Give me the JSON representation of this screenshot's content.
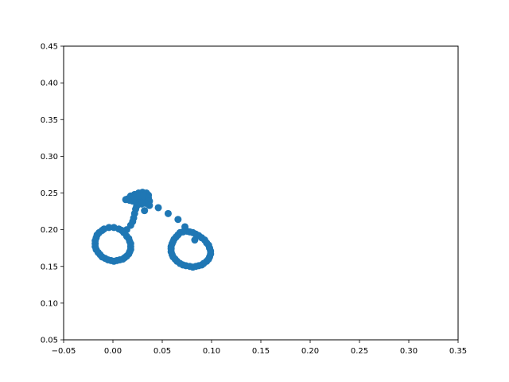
{
  "chart_data": {
    "type": "scatter",
    "title": "",
    "xlabel": "",
    "ylabel": "",
    "xlim": [
      -0.05,
      0.35
    ],
    "ylim": [
      0.05,
      0.45
    ],
    "xticks": [
      "−0.05",
      "0.00",
      "0.05",
      "0.10",
      "0.15",
      "0.20",
      "0.25",
      "0.30",
      "0.35"
    ],
    "yticks": [
      "0.05",
      "0.10",
      "0.15",
      "0.20",
      "0.25",
      "0.30",
      "0.35",
      "0.40",
      "0.45"
    ],
    "grid": false,
    "color": "#1f77b4",
    "series": [
      {
        "points": [
          [
            0.015,
            0.242
          ],
          [
            0.018,
            0.246
          ],
          [
            0.022,
            0.248
          ],
          [
            0.026,
            0.25
          ],
          [
            0.03,
            0.251
          ],
          [
            0.034,
            0.25
          ],
          [
            0.036,
            0.247
          ],
          [
            0.035,
            0.244
          ],
          [
            0.032,
            0.242
          ],
          [
            0.028,
            0.24
          ],
          [
            0.024,
            0.239
          ],
          [
            0.02,
            0.239
          ],
          [
            0.017,
            0.24
          ],
          [
            0.013,
            0.241
          ],
          [
            0.022,
            0.244
          ],
          [
            0.027,
            0.246
          ],
          [
            0.031,
            0.246
          ],
          [
            0.036,
            0.243
          ],
          [
            0.037,
            0.239
          ],
          [
            0.033,
            0.236
          ],
          [
            0.029,
            0.235
          ],
          [
            0.024,
            0.232
          ],
          [
            0.023,
            0.228
          ],
          [
            0.022,
            0.222
          ],
          [
            0.021,
            0.216
          ],
          [
            0.02,
            0.211
          ],
          [
            0.018,
            0.206
          ],
          [
            0.014,
            0.2
          ],
          [
            0.032,
            0.226
          ],
          [
            0.037,
            0.233
          ],
          [
            0.046,
            0.23
          ],
          [
            0.056,
            0.222
          ],
          [
            0.066,
            0.214
          ],
          [
            0.073,
            0.204
          ],
          [
            0.083,
            0.186
          ],
          [
            0.011,
            0.196
          ],
          [
            0.006,
            0.201
          ],
          [
            0.001,
            0.203
          ],
          [
            -0.004,
            0.203
          ],
          [
            -0.009,
            0.201
          ],
          [
            -0.014,
            0.196
          ],
          [
            -0.017,
            0.189
          ],
          [
            -0.018,
            0.181
          ],
          [
            -0.017,
            0.173
          ],
          [
            -0.013,
            0.166
          ],
          [
            -0.008,
            0.161
          ],
          [
            -0.002,
            0.158
          ],
          [
            0.004,
            0.158
          ],
          [
            0.01,
            0.16
          ],
          [
            0.014,
            0.164
          ],
          [
            0.017,
            0.17
          ],
          [
            0.018,
            0.177
          ],
          [
            0.017,
            0.184
          ],
          [
            0.014,
            0.191
          ],
          [
            0.009,
            0.199
          ],
          [
            -0.011,
            0.199
          ],
          [
            -0.016,
            0.193
          ],
          [
            -0.018,
            0.185
          ],
          [
            -0.018,
            0.177
          ],
          [
            -0.015,
            0.169
          ],
          [
            -0.011,
            0.163
          ],
          [
            -0.005,
            0.159
          ],
          [
            0.001,
            0.157
          ],
          [
            0.007,
            0.159
          ],
          [
            0.012,
            0.162
          ],
          [
            0.016,
            0.167
          ],
          [
            0.018,
            0.173
          ],
          [
            0.018,
            0.181
          ],
          [
            0.016,
            0.188
          ],
          [
            0.068,
            0.196
          ],
          [
            0.075,
            0.198
          ],
          [
            0.081,
            0.196
          ],
          [
            0.087,
            0.192
          ],
          [
            0.093,
            0.186
          ],
          [
            0.097,
            0.179
          ],
          [
            0.099,
            0.171
          ],
          [
            0.098,
            0.163
          ],
          [
            0.095,
            0.157
          ],
          [
            0.09,
            0.152
          ],
          [
            0.084,
            0.15
          ],
          [
            0.078,
            0.15
          ],
          [
            0.071,
            0.152
          ],
          [
            0.065,
            0.157
          ],
          [
            0.061,
            0.163
          ],
          [
            0.059,
            0.17
          ],
          [
            0.059,
            0.177
          ],
          [
            0.061,
            0.184
          ],
          [
            0.064,
            0.19
          ],
          [
            0.071,
            0.197
          ],
          [
            0.078,
            0.197
          ],
          [
            0.084,
            0.194
          ],
          [
            0.09,
            0.189
          ],
          [
            0.095,
            0.182
          ],
          [
            0.098,
            0.175
          ],
          [
            0.099,
            0.167
          ],
          [
            0.097,
            0.16
          ],
          [
            0.092,
            0.154
          ],
          [
            0.087,
            0.151
          ],
          [
            0.081,
            0.149
          ],
          [
            0.074,
            0.151
          ],
          [
            0.068,
            0.154
          ],
          [
            0.063,
            0.16
          ],
          [
            0.06,
            0.166
          ],
          [
            0.059,
            0.174
          ],
          [
            0.06,
            0.181
          ],
          [
            0.062,
            0.187
          ],
          [
            0.066,
            0.193
          ]
        ]
      }
    ]
  }
}
